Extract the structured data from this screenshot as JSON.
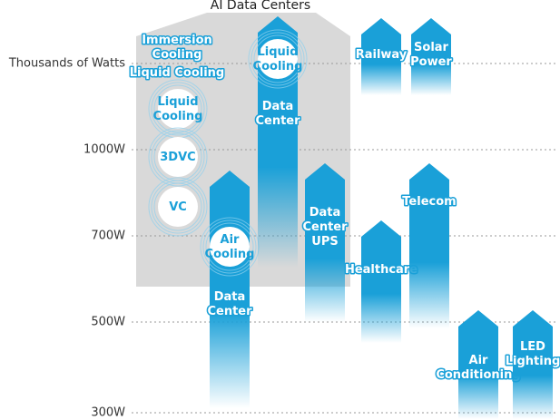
{
  "title": "AI Data Centers",
  "axis_labels": [
    "Thousands of Watts",
    "1000W",
    "700W",
    "500W",
    "300W"
  ],
  "cooling": [
    "Immersion Cooling",
    "Liquid Cooling",
    "Liquid Cooling",
    "3DVC",
    "VC"
  ],
  "arrows": [
    {
      "label": "Data Center",
      "badge": "Air Cooling"
    },
    {
      "label": "Data Center",
      "badge": "Liquid Cooling"
    },
    {
      "label": "Data Center UPS"
    },
    {
      "label": "Healthcare"
    },
    {
      "label": "Telecom"
    },
    {
      "label": "Railway"
    },
    {
      "label": "Solar Power"
    },
    {
      "label": "Air Conditioning"
    },
    {
      "label": "LED Lighting"
    }
  ]
}
